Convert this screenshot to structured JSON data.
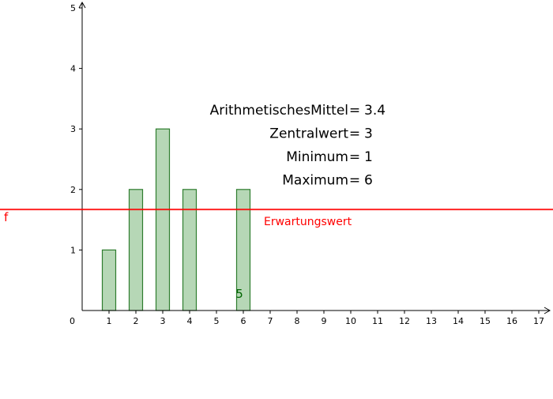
{
  "chart_data": {
    "type": "bar",
    "x_ticks": [
      "1",
      "2",
      "3",
      "4",
      "5",
      "6",
      "7",
      "8",
      "9",
      "10",
      "11",
      "12",
      "13",
      "14",
      "15",
      "16",
      "17"
    ],
    "y_ticks": [
      "1",
      "2",
      "3",
      "4",
      "5"
    ],
    "origin_label": "0",
    "xlim": [
      0,
      17.5
    ],
    "ylim": [
      0,
      5
    ],
    "bars": [
      {
        "x": 1,
        "value": 1
      },
      {
        "x": 2,
        "value": 2
      },
      {
        "x": 3,
        "value": 3
      },
      {
        "x": 4,
        "value": 2
      },
      {
        "x": 6,
        "value": 2
      }
    ],
    "bar_width": 0.5,
    "bar_color": "#b6d7b6",
    "bar_edge_color": "#2e7d2e",
    "bar_chart_label": "5",
    "expected_value_line": {
      "y": 1.67,
      "name": "f",
      "label": "Erwartungswert",
      "color": "#ff0000"
    },
    "statistics": [
      {
        "name": "ArithmetischesMittel",
        "value": "3.4"
      },
      {
        "name": "Zentralwert",
        "value": "3"
      },
      {
        "name": "Minimum",
        "value": "1"
      },
      {
        "name": "Maximum",
        "value": "6"
      }
    ],
    "grid": false
  }
}
